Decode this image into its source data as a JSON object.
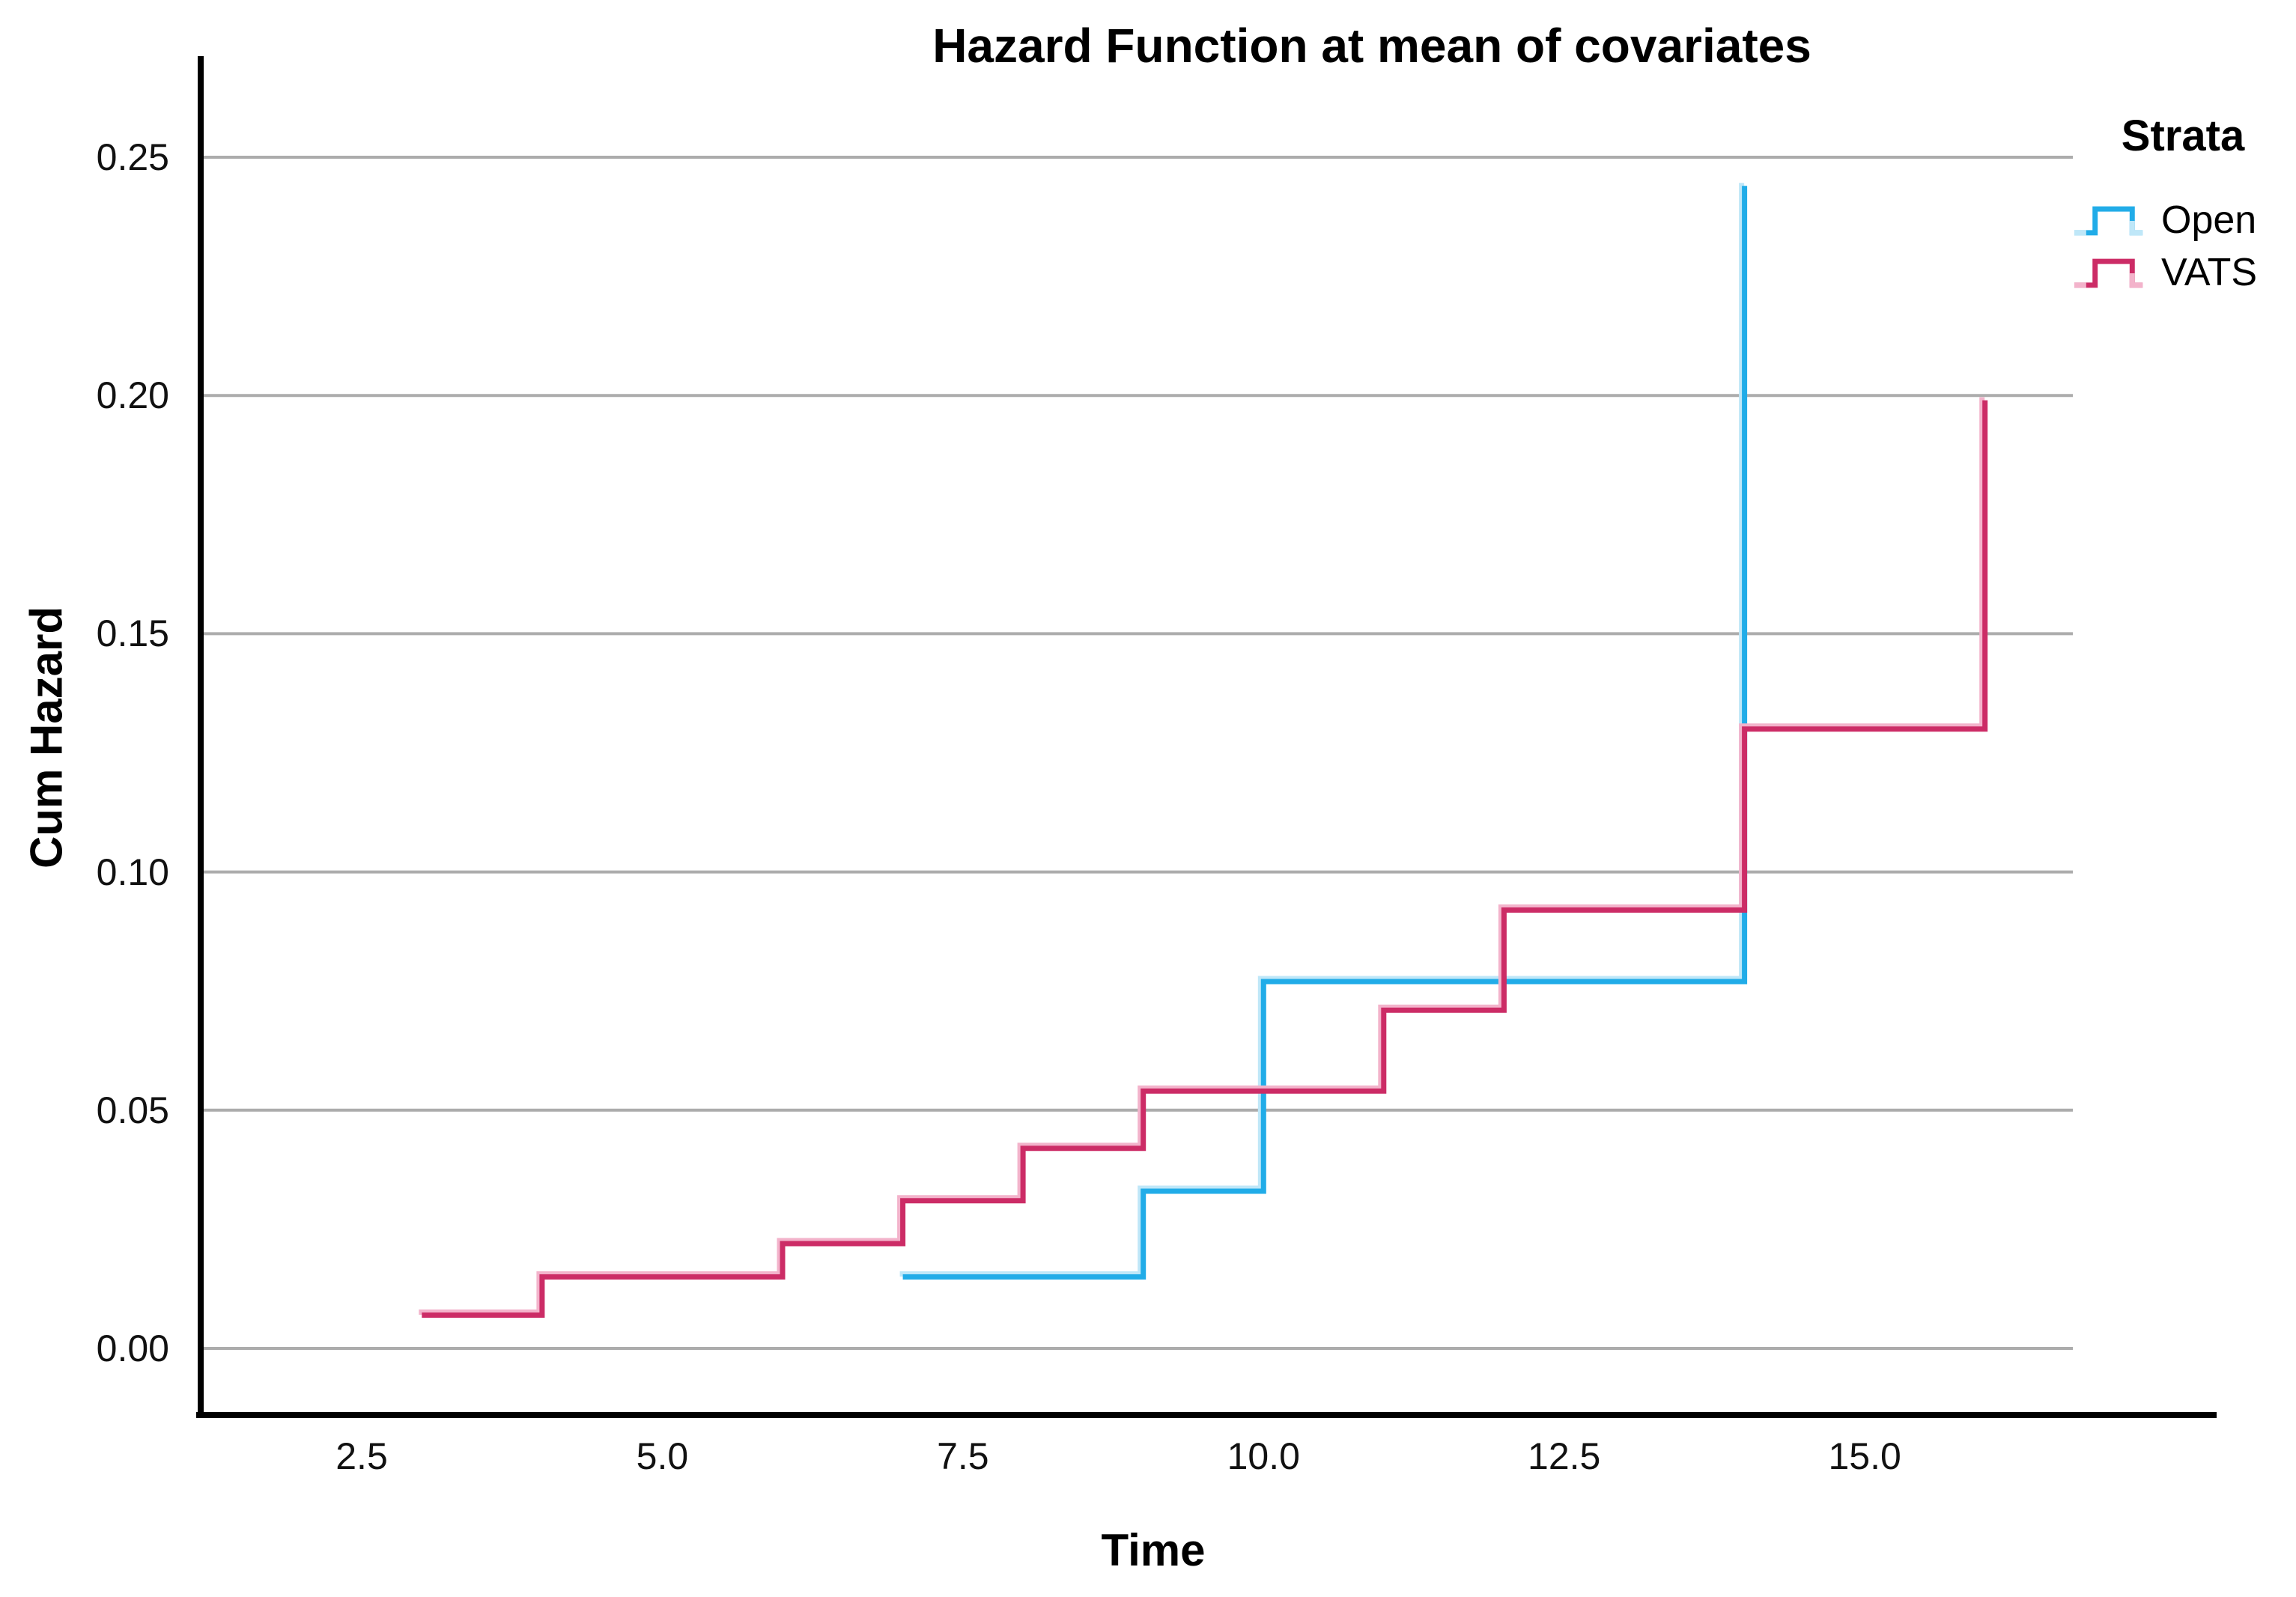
{
  "chart_data": {
    "type": "line",
    "subtype": "step-post",
    "title": "Hazard Function at mean of covariates",
    "xlabel": "Time",
    "ylabel": "Cum Hazard",
    "legend_title": "Strata",
    "legend_position": "top-right",
    "grid": "horizontal-only",
    "grid_color": "#ACACAC",
    "axis_color": "#000000",
    "background": "#ffffff",
    "x_ticks": [
      {
        "label": "2.5",
        "value": 2.5
      },
      {
        "label": "5.0",
        "value": 5.0
      },
      {
        "label": "7.5",
        "value": 7.5
      },
      {
        "label": "10.0",
        "value": 10.0
      },
      {
        "label": "12.5",
        "value": 12.5
      },
      {
        "label": "15.0",
        "value": 15.0
      }
    ],
    "y_ticks": [
      {
        "label": "0.00",
        "value": 0.0
      },
      {
        "label": "0.05",
        "value": 0.05
      },
      {
        "label": "0.10",
        "value": 0.1
      },
      {
        "label": "0.15",
        "value": 0.15
      },
      {
        "label": "0.20",
        "value": 0.2
      },
      {
        "label": "0.25",
        "value": 0.25
      }
    ],
    "xlim": [
      1.16,
      17.9
    ],
    "ylim": [
      -0.014,
      0.27
    ],
    "series": [
      {
        "name": "Open",
        "color": "#21ACE8",
        "halo_color": "#BFE7F8",
        "points": [
          [
            7,
            0.015
          ],
          [
            9,
            0.015
          ],
          [
            9,
            0.033
          ],
          [
            10,
            0.033
          ],
          [
            10,
            0.077
          ],
          [
            14,
            0.077
          ],
          [
            14,
            0.244
          ]
        ]
      },
      {
        "name": "VATS",
        "color": "#CC2C66",
        "halo_color": "#F3B3CB",
        "points": [
          [
            3,
            0.007
          ],
          [
            4,
            0.007
          ],
          [
            4,
            0.015
          ],
          [
            6,
            0.015
          ],
          [
            6,
            0.022
          ],
          [
            7,
            0.022
          ],
          [
            7,
            0.031
          ],
          [
            8,
            0.031
          ],
          [
            8,
            0.042
          ],
          [
            9,
            0.042
          ],
          [
            9,
            0.054
          ],
          [
            11,
            0.054
          ],
          [
            11,
            0.071
          ],
          [
            12,
            0.071
          ],
          [
            12,
            0.092
          ],
          [
            14,
            0.092
          ],
          [
            14,
            0.13
          ],
          [
            16,
            0.13
          ],
          [
            16,
            0.199
          ]
        ]
      }
    ]
  }
}
